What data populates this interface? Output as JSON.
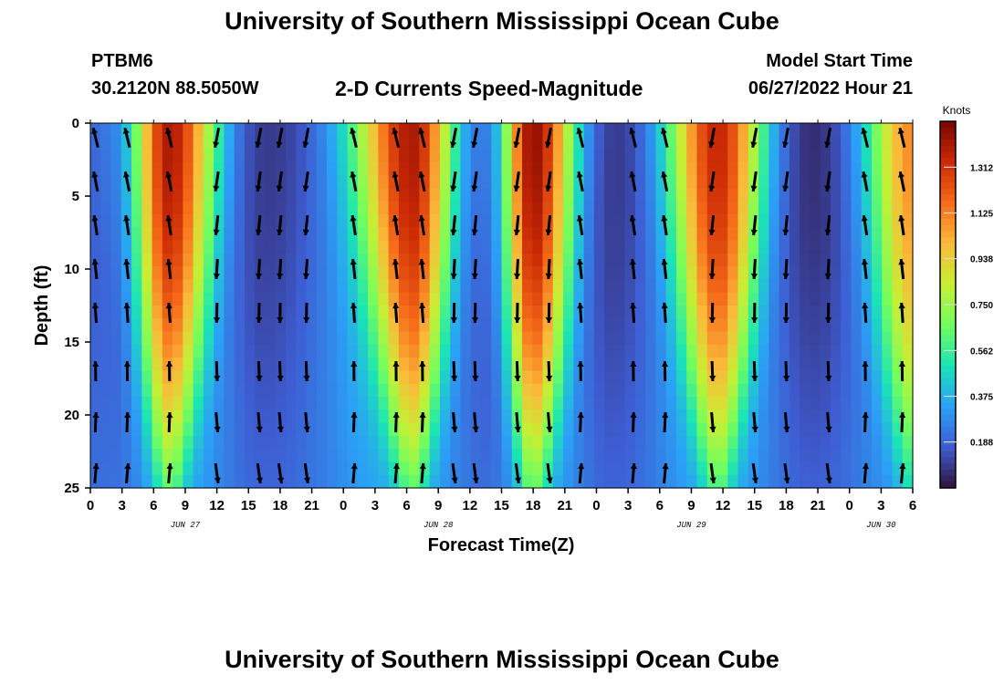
{
  "header": {
    "title": "University of Southern Mississippi Ocean Cube",
    "station_id": "PTBM6",
    "coordinates": "30.2120N  88.5050W",
    "subtitle": "2-D Currents Speed-Magnitude",
    "model_start_label": "Model Start Time",
    "model_start_value": "06/27/2022 Hour 21"
  },
  "footer": {
    "title": "University of Southern Mississippi Ocean Cube"
  },
  "chart_data": {
    "type": "heatmap",
    "title": "2-D Currents Speed-Magnitude",
    "xlabel": "Forecast Time(Z)",
    "ylabel": "Depth (ft)",
    "x_tick_labels": [
      "0",
      "3",
      "6",
      "9",
      "12",
      "15",
      "18",
      "21",
      "0",
      "3",
      "6",
      "9",
      "12",
      "15",
      "18",
      "21",
      "0",
      "3",
      "6",
      "9",
      "12",
      "15",
      "18",
      "21",
      "0",
      "3",
      "6"
    ],
    "x_range_hours": [
      0,
      78
    ],
    "date_labels": [
      {
        "label": "JUN 27",
        "hour": 9
      },
      {
        "label": "JUN 28",
        "hour": 33
      },
      {
        "label": "JUN 29",
        "hour": 57
      },
      {
        "label": "JUN 30",
        "hour": 75
      }
    ],
    "y_ticks": [
      0,
      5,
      10,
      15,
      20,
      25
    ],
    "ylim": [
      0,
      25
    ],
    "y_inverted": true,
    "colorbar": {
      "title": "Knots",
      "tick_labels": [
        "1.312",
        "1.125",
        "0.938",
        "0.750",
        "0.562",
        "0.375",
        "0.188"
      ],
      "tick_values": [
        1.312,
        1.125,
        0.938,
        0.75,
        0.562,
        0.375,
        0.188
      ],
      "range": [
        0,
        1.5
      ],
      "colormap": [
        "#30123b",
        "#3e5dd2",
        "#2ba0f7",
        "#1ae4b6",
        "#72fe5e",
        "#c7ef34",
        "#faba39",
        "#f66b19",
        "#cb2a04",
        "#7a0403"
      ]
    },
    "speed_peaks": [
      {
        "hour": 7.5,
        "max_knots": 1.4
      },
      {
        "hour": 30.5,
        "max_knots": 1.4
      },
      {
        "hour": 42.0,
        "max_knots": 1.45
      },
      {
        "hour": 59.5,
        "max_knots": 1.35
      },
      {
        "hour": 78.0,
        "max_knots": 1.1
      }
    ],
    "speed_minima": [
      {
        "hour": 2.0,
        "min_knots": 0.4
      },
      {
        "hour": 16.5,
        "min_knots": 0.22
      },
      {
        "hour": 37.5,
        "min_knots": 0.35
      },
      {
        "hour": 49.5,
        "min_knots": 0.2
      },
      {
        "hour": 68.5,
        "min_knots": 0.15
      }
    ],
    "vector_columns_hours": [
      0.5,
      3.5,
      7.5,
      12,
      16,
      18,
      20.5,
      25,
      29,
      31.5,
      34.5,
      36.5,
      40.5,
      43.5,
      46.5,
      51.5,
      54.5,
      59,
      63,
      66,
      70,
      73.5,
      77
    ],
    "vector_rows_depth_ft": [
      1,
      4,
      7,
      10,
      13,
      17,
      20.5,
      24
    ]
  }
}
